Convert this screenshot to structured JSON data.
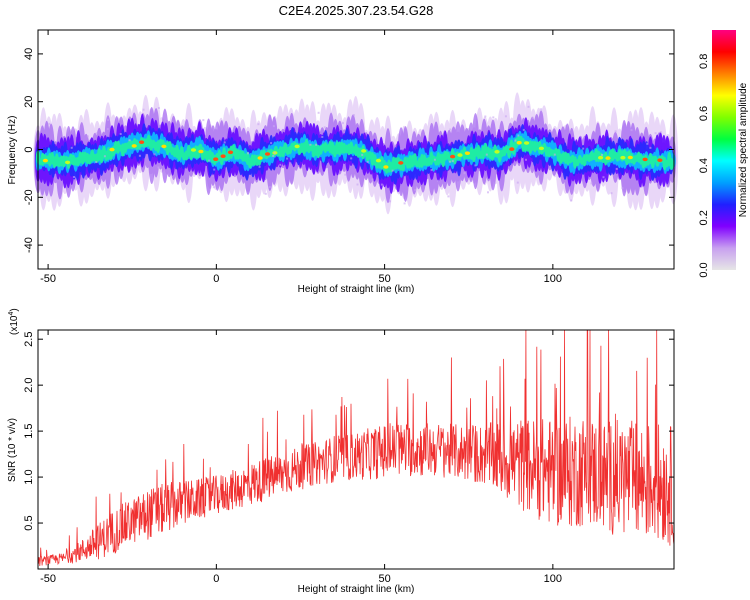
{
  "title": "C2E4.2025.307.23.54.G28",
  "spectrogram": {
    "type": "heatmap",
    "xlabel": "Height of straight line (km)",
    "ylabel": "Frequency (Hz)",
    "xlim": [
      -53,
      136
    ],
    "ylim": [
      -50,
      50
    ],
    "xticks": [
      -50,
      0,
      50,
      100
    ],
    "yticks": [
      -40,
      -20,
      0,
      20,
      40
    ],
    "ridge": {
      "x": [
        -53,
        -45,
        -40,
        -35,
        -30,
        -25,
        -20,
        -15,
        -10,
        -5,
        0,
        5,
        10,
        15,
        20,
        25,
        30,
        35,
        40,
        45,
        50,
        55,
        60,
        65,
        70,
        75,
        80,
        85,
        90,
        95,
        100,
        105,
        110,
        115,
        120,
        125,
        130,
        136
      ],
      "y": [
        -4,
        -5,
        -4,
        -3,
        0,
        2,
        3,
        1,
        -2,
        0,
        -4,
        -1,
        -5,
        -2,
        0,
        1,
        0,
        0,
        1,
        -2,
        -7,
        -6,
        -5,
        -4,
        -3,
        -2,
        -1,
        -2,
        3,
        1,
        -1,
        -5,
        -4,
        -3,
        -3,
        -4,
        -5,
        -5
      ]
    },
    "colorbar": {
      "label": "Normalized spectral amplitude",
      "ticks": [
        0.0,
        0.2,
        0.4,
        0.6,
        0.8
      ],
      "range": [
        0.0,
        0.92
      ],
      "colors": [
        "#e6e6e6",
        "#c8a0f0",
        "#8000ff",
        "#2020ff",
        "#00a0ff",
        "#00ffff",
        "#00ff40",
        "#80ff00",
        "#ffff00",
        "#ff8000",
        "#ff0000",
        "#ff0080"
      ]
    }
  },
  "snr": {
    "type": "line",
    "xlabel": "Height of straight line (km)",
    "ylabel": "SNR (10 * v/v)",
    "exponent": "(x10",
    "exponent_power": "4",
    "exponent_close": ")",
    "xlim": [
      -53,
      136
    ],
    "ylim": [
      0.0,
      2.6
    ],
    "xticks": [
      -50,
      0,
      50,
      100
    ],
    "yticks": [
      0.5,
      1.0,
      1.5,
      2.0,
      2.5
    ],
    "color": "#f03030",
    "trend": {
      "x": [
        -53,
        -45,
        -40,
        -35,
        -30,
        -25,
        -20,
        -15,
        -10,
        -5,
        0,
        5,
        10,
        15,
        20,
        25,
        30,
        35,
        40,
        45,
        50,
        55,
        60,
        65,
        70,
        75,
        80,
        85,
        90,
        95,
        100,
        105,
        110,
        115,
        120,
        125,
        130,
        136
      ],
      "mean": [
        0.08,
        0.12,
        0.2,
        0.3,
        0.42,
        0.52,
        0.6,
        0.66,
        0.72,
        0.76,
        0.8,
        0.86,
        0.92,
        0.98,
        1.04,
        1.1,
        1.15,
        1.2,
        1.22,
        1.25,
        1.28,
        1.3,
        1.3,
        1.3,
        1.28,
        1.26,
        1.24,
        1.2,
        1.15,
        1.1,
        1.05,
        1.05,
        1.08,
        1.0,
        1.0,
        0.95,
        0.95,
        0.9
      ],
      "spread": [
        0.05,
        0.06,
        0.12,
        0.2,
        0.25,
        0.25,
        0.28,
        0.28,
        0.25,
        0.22,
        0.22,
        0.22,
        0.24,
        0.24,
        0.24,
        0.24,
        0.24,
        0.26,
        0.26,
        0.28,
        0.3,
        0.3,
        0.3,
        0.3,
        0.3,
        0.32,
        0.34,
        0.42,
        0.5,
        0.55,
        0.6,
        0.62,
        0.62,
        0.62,
        0.64,
        0.66,
        0.66,
        0.66
      ]
    }
  }
}
